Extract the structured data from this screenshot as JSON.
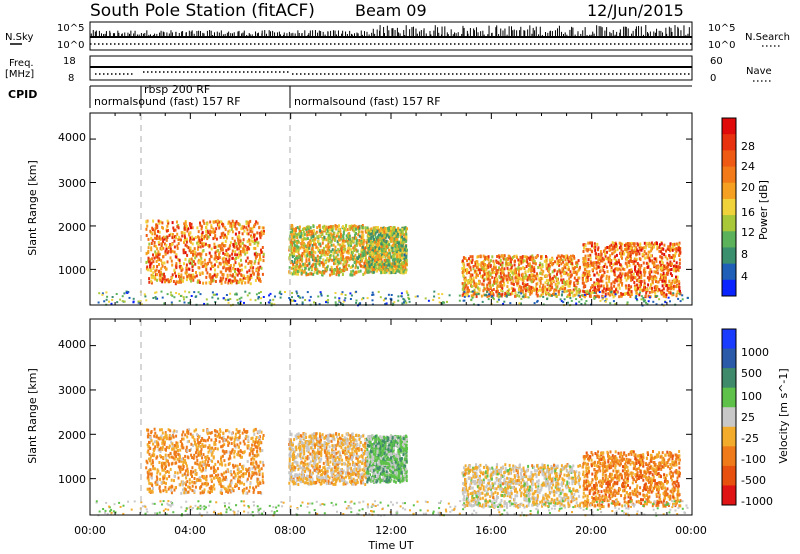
{
  "header": {
    "station": "South Pole Station (fitACF)",
    "beam": "Beam 09",
    "date": "12/Jun/2015"
  },
  "noise_panel": {
    "left_label": "N.Sky",
    "right_label": "N.Search",
    "ticks": [
      "10^5",
      "10^0"
    ]
  },
  "freq_panel": {
    "left_label_line1": "Freq.",
    "left_label_line2": "[MHz]",
    "left_ticks": [
      "18",
      "8"
    ],
    "right_label": "Nave",
    "right_ticks": [
      "60",
      "0"
    ]
  },
  "cpid_panel": {
    "label": "CPID",
    "segments": [
      {
        "text": "normalsound (fast) 157 RF",
        "start_hour": 0.0
      },
      {
        "text": "rbsp 200 RF",
        "start_hour": 2.0
      },
      {
        "text": "normalsound (fast) 157 RF",
        "start_hour": 8.0
      }
    ]
  },
  "x_axis": {
    "label": "Time UT",
    "tick_labels": [
      "00:00",
      "04:00",
      "08:00",
      "12:00",
      "16:00",
      "20:00",
      "00:00"
    ],
    "range_hours": [
      0,
      24
    ]
  },
  "mode_change_hours": [
    2.0,
    8.0
  ],
  "power_panel": {
    "ylabel": "Slant Range [km]",
    "yticks": [
      "1000",
      "2000",
      "3000",
      "4000"
    ],
    "colorbar_label": "Power [dB]",
    "colorbar_ticks": [
      "28",
      "24",
      "20",
      "16",
      "12",
      "8",
      "4"
    ],
    "colorbar_colors": [
      "#0a24ff",
      "#1f5fb8",
      "#3a8f6e",
      "#5bb25a",
      "#a8c83a",
      "#f0d23a",
      "#f5a020",
      "#f27a18",
      "#ee5a14",
      "#e8320f",
      "#e00a0a"
    ]
  },
  "velocity_panel": {
    "ylabel": "Slant Range [km]",
    "yticks": [
      "1000",
      "2000",
      "3000",
      "4000"
    ],
    "colorbar_label": "Velocity [m s^-1]",
    "colorbar_ticks": [
      "1000",
      "500",
      "100",
      "25",
      "-25",
      "-100",
      "-500",
      "-1000"
    ],
    "colorbar_colors": [
      "#1a3cff",
      "#2a5aa8",
      "#3f8a6a",
      "#5ec24a",
      "#c8c8c8",
      "#f2ab2a",
      "#ef7a1a",
      "#e8500f",
      "#e01414"
    ]
  },
  "chart_data": {
    "type": "heatmap",
    "title": "South Pole Station (fitACF)",
    "xlabel": "Time UT",
    "ylabel": "Slant Range [km]",
    "xlim_hours": [
      0,
      24
    ],
    "ylim_km": [
      180,
      4600
    ],
    "scatter_regions": [
      {
        "t0": 2.2,
        "t1": 6.9,
        "r0": 700,
        "r1": 2150,
        "power": 21,
        "velocity": -300
      },
      {
        "t0": 7.9,
        "t1": 11.0,
        "r0": 900,
        "r1": 2050,
        "power": 16,
        "velocity": -150
      },
      {
        "t0": 11.0,
        "t1": 12.6,
        "r0": 950,
        "r1": 2000,
        "power": 14,
        "velocity": 200
      },
      {
        "t0": 14.8,
        "t1": 19.5,
        "r0": 400,
        "r1": 1350,
        "power": 20,
        "velocity": -100
      },
      {
        "t0": 19.6,
        "t1": 23.5,
        "r0": 400,
        "r1": 1650,
        "power": 22,
        "velocity": -400
      },
      {
        "t0": 0.2,
        "t1": 23.8,
        "r0": 190,
        "r1": 520,
        "power": 10,
        "velocity": 20
      }
    ]
  }
}
